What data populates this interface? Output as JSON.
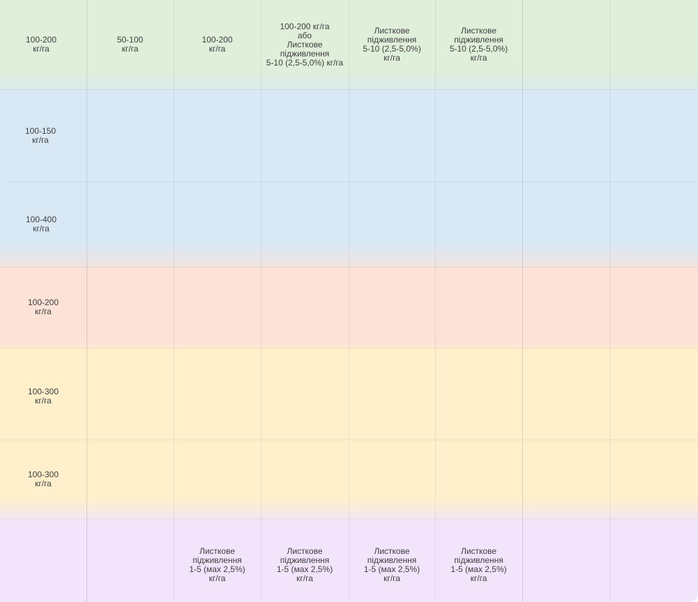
{
  "table": {
    "rows": [
      {
        "id": "green",
        "color": "#e0efd9",
        "cells": [
          "100-200\nкг/га",
          "50-100\nкг/га",
          "100-200\nкг/га",
          "100-200 кг/га\nабо\nЛисткове\nпідживлення\n5-10 (2,5-5,0%) кг/га",
          "Листкове\nпідживлення\n5-10 (2,5-5,0%)\nкг/га",
          "Листкове\nпідживлення\n5-10 (2,5-5,0%)\nкг/га",
          "",
          ""
        ]
      },
      {
        "id": "blue-1",
        "color": "#d9e8f5",
        "cells": [
          "100-150\nкг/га",
          "",
          "",
          "",
          "",
          "",
          "",
          ""
        ]
      },
      {
        "id": "blue-2",
        "color": "#d9e8f5",
        "cells": [
          "100-400\nкг/га",
          "",
          "",
          "",
          "",
          "",
          "",
          ""
        ]
      },
      {
        "id": "red",
        "color": "#fce2d7",
        "cells": [
          "100-200\nкг/га",
          "",
          "",
          "",
          "",
          "",
          "",
          ""
        ]
      },
      {
        "id": "yellow-1",
        "color": "#fff0cb",
        "cells": [
          "100-300\nкг/га",
          "",
          "",
          "",
          "",
          "",
          "",
          ""
        ]
      },
      {
        "id": "yellow-2",
        "color": "#fff0cb",
        "cells": [
          "100-300\nкг/га",
          "",
          "",
          "",
          "",
          "",
          "",
          ""
        ]
      },
      {
        "id": "purple",
        "color": "#f1e4fb",
        "cells": [
          "",
          "",
          "Листкове\nпідживлення\n1-5 (мах 2,5%)\nкг/га",
          "Листкове\nпідживлення\n1-5 (мах 2,5%)\nкг/га",
          "Листкове\nпідживлення\n1-5 (мах 2,5%)\nкг/га",
          "Листкове\nпідживлення\n1-5 (мах 2,5%)\nкг/га",
          "",
          ""
        ]
      }
    ]
  }
}
